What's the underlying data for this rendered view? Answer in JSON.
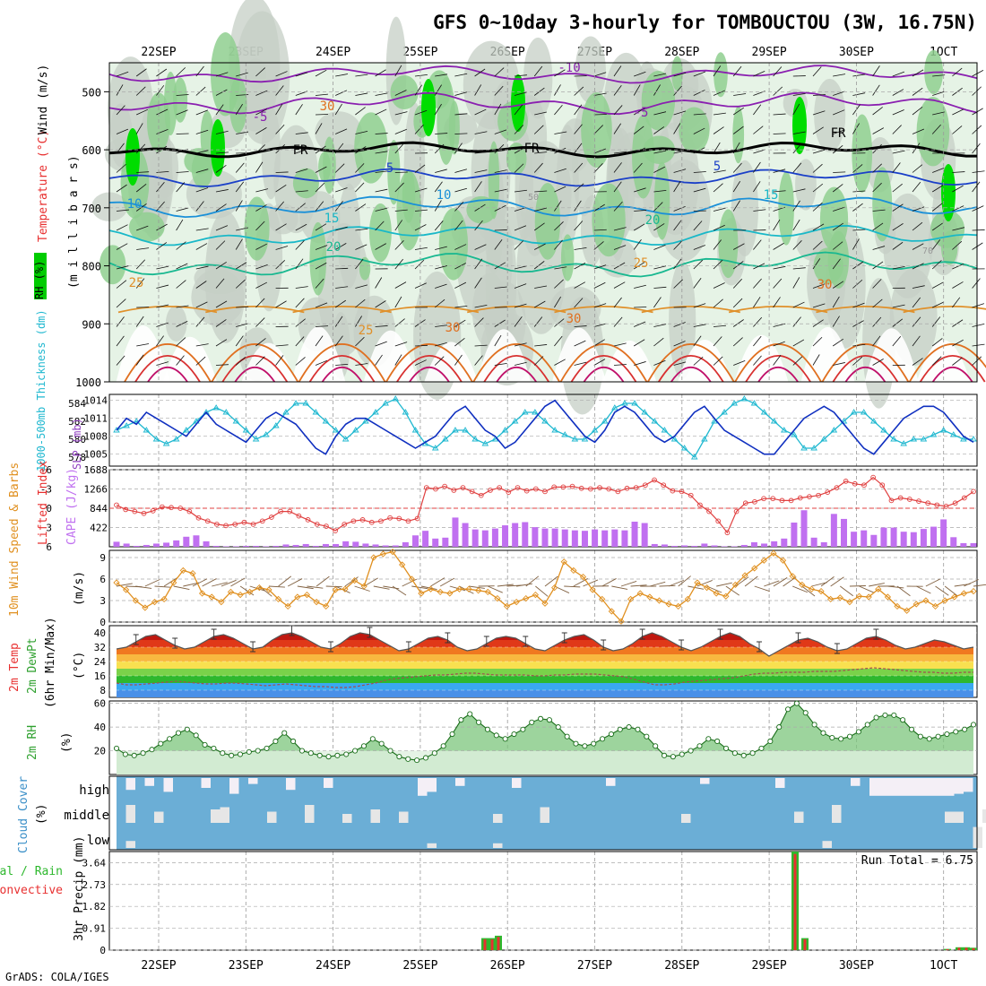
{
  "title": "GFS 0~10day 3-hourly for TOMBOUCTOU (3W, 16.75N)",
  "credit": "GrADS: COLA/IGES",
  "colors": {
    "rh_dark": "#00dd00",
    "rh_mid": "#8fcf8f",
    "rh_light": "#e6f3e6",
    "rh_grey": "#c5cfc5",
    "wind_barb": "#000000",
    "freezing": "#000000",
    "slp": "#1030c0",
    "thickness": "#20b8d0",
    "lifted": "#e04040",
    "cape": "#c070f0",
    "wind10": "#e09020",
    "barb10": "#806040",
    "rh2m": "#2ea02e",
    "cloud": "#6baed6",
    "cloud_gap": "#e6e6e6",
    "rain": "#2eb82e",
    "convective": "#e83030"
  },
  "dates": [
    "22SEP",
    "23SEP",
    "24SEP",
    "25SEP",
    "26SEP",
    "27SEP",
    "28SEP",
    "29SEP",
    "30SEP",
    "1OCT"
  ],
  "date_display": [
    "22SEP",
    "23SEP",
    "24SEP",
    "25SEP",
    "26SEP",
    "27SEP",
    "28SEP",
    "29SEP",
    "30SEP",
    "1OCT"
  ],
  "panels": {
    "upper": {
      "ylabel_rh": "RH (%)",
      "ylabel_temp": "Temperature (°C)",
      "ylabel_wind": "Wind (m/s)",
      "ylabel_mb": "(m i l l i b a r s)",
      "yticks": [
        "500",
        "600",
        "700",
        "800",
        "900",
        "1000"
      ],
      "contour_labels": [
        "-10",
        "-5",
        "-5",
        "FR",
        "FR",
        "FR",
        "5",
        "5",
        "10",
        "10",
        "15",
        "15",
        "20",
        "20",
        "25",
        "25",
        "30",
        "30",
        "25",
        "30",
        "30",
        "50",
        "70"
      ]
    },
    "pressure": {
      "ylabel_thick": "1000-500mb Thickness (dm)",
      "ylabel_slp": "SLP (mb)",
      "left_ticks": [
        "584",
        "582",
        "580",
        "578"
      ],
      "right_ticks": [
        "1014",
        "1011",
        "1008",
        "1005"
      ]
    },
    "stability": {
      "ylabel_li": "Lifted Index",
      "ylabel_cape": "CAPE (J/kg)",
      "left_ticks": [
        "-6",
        "-3",
        "0",
        "3",
        "6"
      ],
      "right_ticks": [
        "1688",
        "1266",
        "844",
        "422"
      ]
    },
    "wind": {
      "ylabel": "10m Wind Speed & Barbs",
      "unit": "(m/s)",
      "ticks": [
        "9",
        "6",
        "3",
        "0"
      ]
    },
    "temp": {
      "ylabel_a": "2m Temp",
      "ylabel_b": "2m DewPt",
      "ylabel_c": "(6hr Min/Max)",
      "unit": "(°C)",
      "ticks": [
        "40",
        "32",
        "24",
        "16",
        "8"
      ]
    },
    "rh": {
      "ylabel": "2m RH",
      "unit": "(%)",
      "ticks": [
        "60",
        "40",
        "20"
      ]
    },
    "cloud": {
      "ylabel": "Cloud Cover",
      "unit": "(%)",
      "levels": [
        "high",
        "middle",
        "low"
      ]
    },
    "precip": {
      "ylabel_a": "Total / Rain",
      "ylabel_b": "Convective",
      "ylabel_c": "3hr Precip (mm)",
      "ticks": [
        "3.64",
        "2.73",
        "1.82",
        "0.91",
        "0"
      ],
      "run_total": "Run Total = 6.75"
    }
  },
  "chart_data": [
    {
      "type": "line",
      "title": "SLP and 1000-500mb Thickness",
      "series": [
        {
          "name": "SLP (mb)",
          "values": [
            1009,
            1011,
            1010,
            1012,
            1011,
            1010,
            1009,
            1008,
            1010,
            1012,
            1010,
            1009,
            1008,
            1007,
            1009,
            1011,
            1012,
            1011,
            1010,
            1008,
            1006,
            1005,
            1008,
            1010,
            1011,
            1011,
            1010,
            1009,
            1008,
            1007,
            1006,
            1007,
            1008,
            1010,
            1012,
            1013,
            1011,
            1009,
            1008,
            1006,
            1007,
            1009,
            1011,
            1013,
            1014,
            1012,
            1010,
            1008,
            1007,
            1009,
            1012,
            1013,
            1012,
            1010,
            1008,
            1007,
            1008,
            1010,
            1012,
            1013,
            1011,
            1009,
            1008,
            1007,
            1006,
            1005,
            1005,
            1007,
            1009,
            1011,
            1012,
            1013,
            1012,
            1010,
            1008,
            1006,
            1005,
            1007,
            1009,
            1011,
            1012,
            1013,
            1013,
            1012,
            1010,
            1008,
            1007
          ]
        },
        {
          "name": "1000-500mb Thickness (dm)",
          "values": [
            581,
            581.5,
            582,
            581,
            580,
            579.5,
            580,
            581,
            582,
            583,
            583.5,
            583,
            582,
            581,
            580,
            580.5,
            581.5,
            583,
            584,
            584,
            583,
            582,
            581,
            580,
            581,
            582,
            583,
            584,
            584.5,
            583,
            581,
            579.5,
            579,
            580,
            581,
            581,
            580,
            579.5,
            580,
            581,
            582,
            583,
            583,
            582,
            581,
            580.5,
            580,
            580,
            581,
            582,
            583.5,
            584,
            584,
            583,
            582,
            581,
            580,
            579,
            578,
            580,
            582,
            583,
            584,
            584.5,
            584,
            583,
            582,
            581,
            580.5,
            579,
            579,
            580,
            581,
            582,
            583,
            583,
            582,
            581,
            580,
            579.5,
            580,
            580,
            580.5,
            581,
            580.5,
            580,
            580
          ]
        }
      ],
      "ylim_slp": [
        1003,
        1015
      ],
      "ylim_thickness": [
        577,
        585
      ]
    },
    {
      "type": "bar",
      "title": "Lifted Index and CAPE",
      "series": [
        {
          "name": "CAPE (J/kg)",
          "values": [
            110,
            70,
            20,
            40,
            70,
            90,
            140,
            220,
            250,
            120,
            20,
            10,
            10,
            20,
            20,
            10,
            20,
            50,
            40,
            60,
            20,
            60,
            60,
            120,
            110,
            70,
            50,
            30,
            30,
            100,
            250,
            350,
            180,
            200,
            640,
            520,
            380,
            360,
            400,
            470,
            520,
            540,
            430,
            400,
            400,
            380,
            360,
            350,
            380,
            360,
            380,
            360,
            550,
            520,
            60,
            50,
            20,
            30,
            20,
            70,
            30,
            10,
            10,
            40,
            100,
            70,
            120,
            180,
            530,
            800,
            200,
            100,
            720,
            610,
            330,
            360,
            260,
            420,
            420,
            330,
            320,
            390,
            440,
            600,
            210,
            80,
            80
          ]
        },
        {
          "name": "Lifted Index",
          "values": [
            -0.5,
            0.2,
            0.5,
            0.8,
            0.4,
            -0.2,
            -0.1,
            0,
            0.5,
            1.5,
            2,
            2.5,
            2.7,
            2.5,
            2.2,
            2.5,
            2,
            1.4,
            0.5,
            0.5,
            1.2,
            1.8,
            2.5,
            2.8,
            3.5,
            2.5,
            2,
            1.8,
            2.2,
            2,
            1.5,
            1.6,
            2,
            1.6,
            -3.2,
            -3,
            -3.4,
            -2.8,
            -3.2,
            -2.6,
            -2,
            -2.8,
            -3.2,
            -2.5,
            -3.2,
            -2.7,
            -3,
            -2.6,
            -3.3,
            -3.3,
            -3.4,
            -3.1,
            -3,
            -3.2,
            -3,
            -2.6,
            -3.1,
            -3.2,
            -3.6,
            -4.4,
            -3.6,
            -2.7,
            -2.6,
            -2,
            -0.5,
            0.5,
            2,
            3.8,
            0.5,
            -0.8,
            -1,
            -1.5,
            -1.5,
            -1.2,
            -1.2,
            -1.6,
            -1.8,
            -2,
            -2.5,
            -3.2,
            -4.2,
            -3.8,
            -3.6,
            -4.8,
            -3.6,
            -1.2,
            -1.6,
            -1.4,
            -1.1,
            -0.8,
            -0.5,
            -0.3,
            -0.8,
            -1.6,
            -2.6
          ]
        }
      ],
      "ylim_cape": [
        0,
        1688
      ],
      "ylim_li": [
        6,
        -6
      ]
    },
    {
      "type": "line",
      "title": "10m Wind Speed",
      "series": [
        {
          "name": "10m Wind Speed (m/s)",
          "values": [
            5.5,
            4.5,
            3,
            2,
            2.8,
            3.2,
            5.5,
            7.2,
            6.8,
            4,
            3.5,
            2.8,
            4.2,
            3.8,
            4.2,
            4.8,
            4.5,
            3.2,
            2.2,
            3.5,
            3.8,
            2.8,
            2.2,
            4.5,
            4.6,
            5.8,
            5,
            9,
            9.5,
            9.8,
            8,
            6,
            4,
            4.6,
            4.2,
            4,
            4.6,
            4.6,
            4.4,
            4.2,
            3.3,
            2.2,
            2.8,
            3.3,
            3.8,
            2.6,
            4.8,
            8.4,
            7.2,
            6.3,
            4.5,
            3.2,
            1.5,
            0.1,
            3.2,
            4,
            3.5,
            3,
            2.5,
            2.2,
            3.2,
            5.5,
            4.8,
            4,
            3.6,
            5.2,
            6.5,
            7.5,
            8.6,
            9.6,
            8.6,
            6.4,
            5.2,
            4.6,
            4.3,
            3.2,
            3.4,
            2.8,
            3.6,
            3.5,
            4.6,
            3.5,
            2.2,
            1.6,
            2.5,
            3,
            2.2,
            3,
            3.5,
            4,
            4.3
          ]
        }
      ],
      "ylim": [
        0,
        10
      ]
    },
    {
      "type": "area",
      "title": "2m Temp and DewPt",
      "series": [
        {
          "name": "2m Temp (°C)",
          "values": [
            31,
            32,
            35,
            38,
            39,
            36,
            33,
            31,
            32,
            35,
            38,
            39,
            37,
            34,
            31,
            32,
            36,
            39,
            40,
            38,
            35,
            32,
            31,
            34,
            38,
            40,
            39,
            36,
            33,
            30,
            31,
            34,
            37,
            38,
            36,
            32,
            30,
            31,
            34,
            37,
            38,
            37,
            34,
            31,
            30,
            33,
            36,
            38,
            39,
            36,
            32,
            30,
            31,
            34,
            38,
            40,
            38,
            35,
            32,
            30,
            32,
            35,
            38,
            40,
            38,
            34,
            31,
            27,
            30,
            33,
            36,
            37,
            35,
            32,
            30,
            31,
            34,
            37,
            38,
            36,
            33,
            31,
            32,
            34,
            36,
            35,
            33,
            31,
            32
          ]
        },
        {
          "name": "2m DewPt (°C)",
          "values": [
            12,
            11,
            11,
            11.5,
            12,
            12.5,
            13,
            12.5,
            12,
            11.5,
            11.5,
            12,
            12,
            11.5,
            11,
            10.5,
            11,
            11.5,
            11,
            10.5,
            10,
            10,
            9.5,
            9.5,
            10,
            11,
            12,
            13.5,
            14.5,
            15,
            15.5,
            16,
            16.5,
            16.5,
            17,
            17.5,
            17.5,
            17,
            16.5,
            16.5,
            16.5,
            16.5,
            16,
            16,
            16.5,
            16.5,
            17,
            17,
            17,
            16.5,
            16,
            15.5,
            14,
            12.5,
            11,
            11,
            11.5,
            12.5,
            13,
            13.5,
            14,
            14.5,
            15,
            16,
            17,
            17.5,
            17.5,
            18,
            18,
            18,
            18.5,
            18.5,
            18.5,
            19,
            19.5,
            20,
            20.5,
            20,
            19.5,
            19,
            18.5,
            18,
            18,
            17.5,
            17.5,
            18,
            18
          ]
        }
      ],
      "ylim": [
        4,
        44
      ]
    },
    {
      "type": "area",
      "title": "2m RH",
      "series": [
        {
          "name": "2m RH (%)",
          "values": [
            22,
            17,
            16,
            18,
            21,
            26,
            30,
            35,
            38,
            33,
            25,
            22,
            18,
            16,
            17,
            19,
            20,
            22,
            28,
            35,
            28,
            20,
            18,
            16,
            15,
            16,
            17,
            20,
            24,
            30,
            26,
            20,
            15,
            13,
            12,
            14,
            18,
            24,
            34,
            46,
            51,
            44,
            38,
            33,
            30,
            34,
            38,
            44,
            47,
            46,
            40,
            32,
            26,
            24,
            26,
            30,
            34,
            38,
            40,
            38,
            32,
            24,
            16,
            15,
            17,
            20,
            24,
            30,
            28,
            22,
            18,
            16,
            18,
            22,
            28,
            40,
            55,
            60,
            52,
            42,
            35,
            31,
            30,
            32,
            36,
            42,
            48,
            50,
            50,
            46,
            38,
            32,
            30,
            32,
            34,
            36,
            38,
            42
          ]
        }
      ],
      "ylim": [
        0,
        62
      ]
    },
    {
      "type": "bar",
      "title": "3hr Precip",
      "series": [
        {
          "name": "Total / Rain (mm)",
          "values": [
            0.5,
            0.5,
            0.6,
            4.1,
            0.5,
            0.05,
            0.12,
            0.12,
            0.1
          ]
        },
        {
          "name": "Convective (mm)",
          "values": [
            0.45,
            0.45,
            0.55,
            4.0,
            0.45,
            0.04,
            0.1,
            0.1,
            0.08
          ]
        }
      ],
      "ylim": [
        0,
        4.1
      ],
      "run_total": 6.75
    }
  ]
}
